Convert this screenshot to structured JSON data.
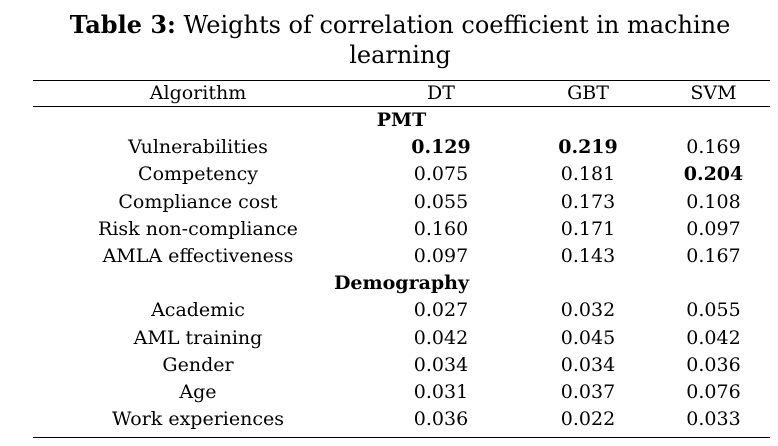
{
  "caption": {
    "label": "Table 3:",
    "line1": "Weights of correlation coefficient in machine",
    "line2": "learning"
  },
  "header": [
    "Algorithm",
    "DT",
    "GBT",
    "SVM"
  ],
  "sections": [
    {
      "title": "PMT",
      "rows": [
        {
          "name": "Vulnerabilities",
          "dt": "0.129",
          "gbt": "0.219",
          "svm": "0.169",
          "bold": [
            "dt",
            "gbt"
          ]
        },
        {
          "name": "Competency",
          "dt": "0.075",
          "gbt": "0.181",
          "svm": "0.204",
          "bold": [
            "svm"
          ]
        },
        {
          "name": "Compliance cost",
          "dt": "0.055",
          "gbt": "0.173",
          "svm": "0.108",
          "bold": []
        },
        {
          "name": "Risk non-compliance",
          "dt": "0.160",
          "gbt": "0.171",
          "svm": "0.097",
          "bold": []
        },
        {
          "name": "AMLA effectiveness",
          "dt": "0.097",
          "gbt": "0.143",
          "svm": "0.167",
          "bold": []
        }
      ]
    },
    {
      "title": "Demography",
      "rows": [
        {
          "name": "Academic",
          "dt": "0.027",
          "gbt": "0.032",
          "svm": "0.055",
          "bold": []
        },
        {
          "name": "AML training",
          "dt": "0.042",
          "gbt": "0.045",
          "svm": "0.042",
          "bold": []
        },
        {
          "name": "Gender",
          "dt": "0.034",
          "gbt": "0.034",
          "svm": "0.036",
          "bold": []
        },
        {
          "name": "Age",
          "dt": "0.031",
          "gbt": "0.037",
          "svm": "0.076",
          "bold": []
        },
        {
          "name": "Work experiences",
          "dt": "0.036",
          "gbt": "0.022",
          "svm": "0.033",
          "bold": []
        }
      ]
    }
  ]
}
